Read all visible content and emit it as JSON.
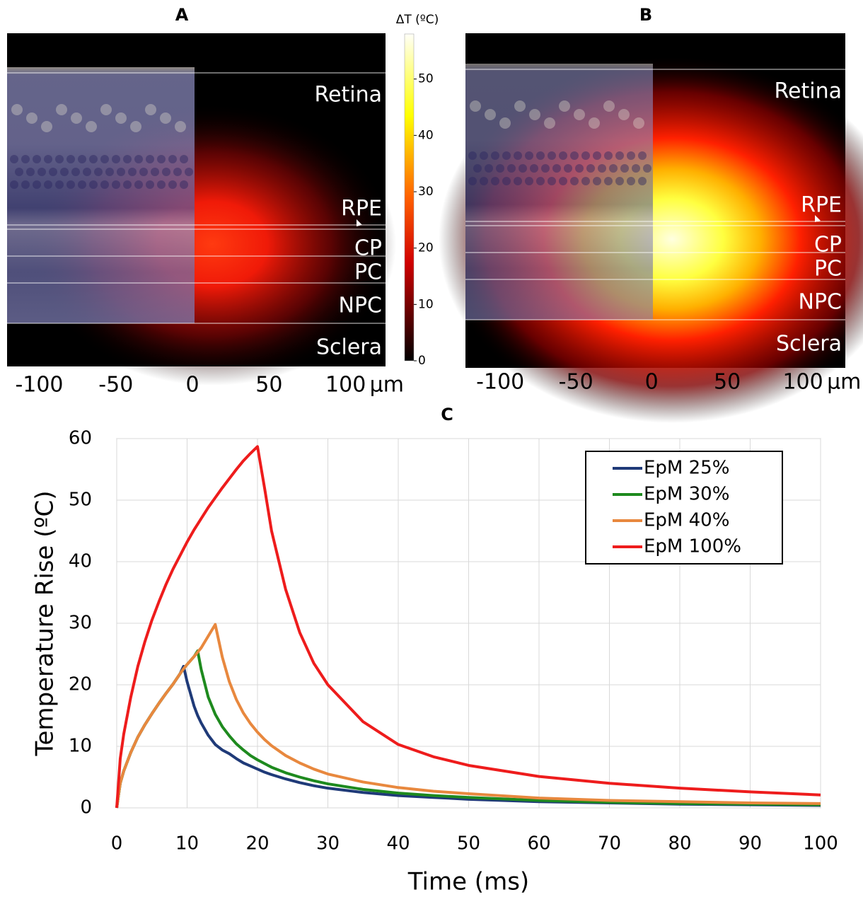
{
  "chart_data": [
    {
      "type": "heatmap",
      "title": "A",
      "layers": [
        "Retina",
        "RPE",
        "CP",
        "PC",
        "NPC",
        "Sclera"
      ],
      "xlim": [
        -121,
        126
      ],
      "xticks": [
        -100,
        -50,
        0,
        50,
        100
      ],
      "x_unit": "µm",
      "colorbar_label": "ΔT (ºC)",
      "clim": [
        0,
        58
      ],
      "cticks": [
        0,
        10,
        20,
        30,
        40,
        50
      ]
    },
    {
      "type": "heatmap",
      "title": "B",
      "layers": [
        "Retina",
        "RPE",
        "CP",
        "PC",
        "NPC",
        "Sclera"
      ],
      "xlim": [
        -123,
        128
      ],
      "xticks": [
        -100,
        -50,
        0,
        50,
        100
      ],
      "x_unit": "µm"
    },
    {
      "type": "line",
      "title": "C",
      "xlabel": "Time (ms)",
      "ylabel": "Temperature Rise (ºC)",
      "xlim": [
        0,
        100
      ],
      "ylim": [
        0,
        60
      ],
      "xticks": [
        0,
        10,
        20,
        30,
        40,
        50,
        60,
        70,
        80,
        90,
        100
      ],
      "yticks": [
        0,
        10,
        20,
        30,
        40,
        50,
        60
      ],
      "grid": true,
      "legend": "upper right",
      "x": [
        0,
        0.5,
        1,
        2,
        3,
        4,
        5,
        6,
        7,
        8,
        9,
        9.5,
        10,
        11,
        11.5,
        12,
        13,
        14,
        15,
        16,
        17,
        18,
        19,
        20,
        21,
        22,
        24,
        26,
        28,
        30,
        35,
        40,
        45,
        50,
        60,
        70,
        80,
        90,
        100
      ],
      "series": [
        {
          "name": "EpM 25%",
          "color": "#1f3a78",
          "values": [
            0,
            4,
            6,
            9,
            11.5,
            13.5,
            15.3,
            17,
            18.6,
            20.1,
            21.8,
            23,
            20.5,
            16.5,
            15,
            13.8,
            11.8,
            10.3,
            9.4,
            8.8,
            8,
            7.3,
            6.8,
            6.3,
            5.8,
            5.4,
            4.7,
            4.1,
            3.6,
            3.2,
            2.5,
            2.0,
            1.7,
            1.4,
            1.0,
            0.8,
            0.6,
            0.5,
            0.4
          ]
        },
        {
          "name": "EpM 30%",
          "color": "#1e8a1e",
          "values": [
            0,
            4,
            6,
            9,
            11.5,
            13.5,
            15.3,
            17,
            18.6,
            20.1,
            21.8,
            22.6,
            23.3,
            24.6,
            25.5,
            22.5,
            18,
            15.2,
            13.2,
            11.7,
            10.4,
            9.4,
            8.5,
            7.8,
            7.2,
            6.6,
            5.7,
            5,
            4.4,
            3.9,
            3,
            2.4,
            2,
            1.7,
            1.2,
            0.9,
            0.7,
            0.6,
            0.5
          ]
        },
        {
          "name": "EpM 40%",
          "color": "#e8883e",
          "values": [
            0,
            4,
            6,
            9,
            11.5,
            13.5,
            15.3,
            17,
            18.6,
            20.1,
            21.8,
            22.6,
            23.3,
            24.6,
            25.3,
            26,
            27.9,
            29.8,
            24.5,
            20.5,
            17.6,
            15.4,
            13.7,
            12.3,
            11.1,
            10.1,
            8.5,
            7.3,
            6.3,
            5.5,
            4.2,
            3.3,
            2.7,
            2.3,
            1.6,
            1.2,
            1,
            0.8,
            0.7
          ]
        },
        {
          "name": "EpM 100%",
          "color": "#ee1c1c",
          "values": [
            0,
            8,
            12,
            18,
            23,
            27,
            30.5,
            33.5,
            36.3,
            38.8,
            41,
            42.1,
            43.2,
            45.2,
            46.1,
            47,
            48.8,
            50.4,
            52,
            53.5,
            55,
            56.4,
            57.6,
            58.7,
            52,
            45,
            35.5,
            28.5,
            23.5,
            20,
            14,
            10.3,
            8.3,
            6.9,
            5.1,
            4,
            3.2,
            2.6,
            2.1
          ]
        }
      ]
    }
  ]
}
